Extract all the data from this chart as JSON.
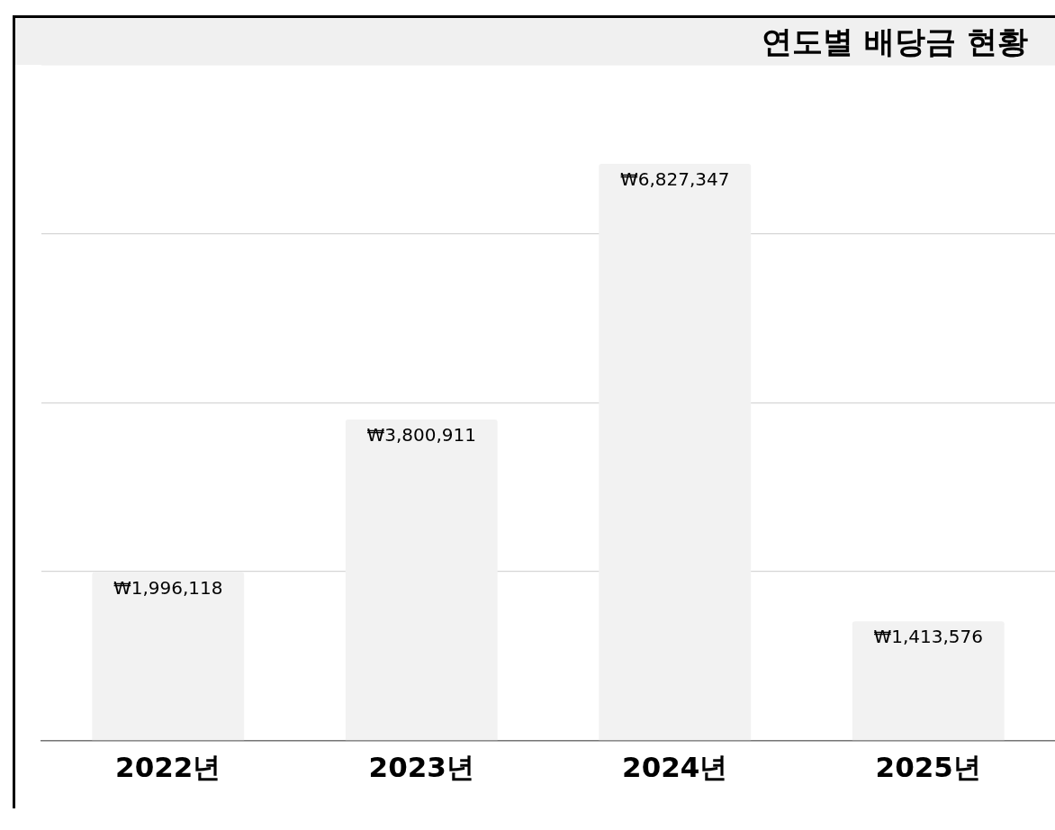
{
  "chart_data": {
    "type": "bar",
    "title": "연도별 배당금 현황",
    "categories": [
      "2022년",
      "2023년",
      "2024년",
      "2025년"
    ],
    "values": [
      1996118,
      3800911,
      6827347,
      1413576
    ],
    "value_labels": [
      "₩1,996,118",
      "₩3,800,911",
      "₩6,827,347",
      "₩1,413,576"
    ],
    "color": "#f2f2f2",
    "grid": "y",
    "tick_labels": "x",
    "legend": false
  }
}
